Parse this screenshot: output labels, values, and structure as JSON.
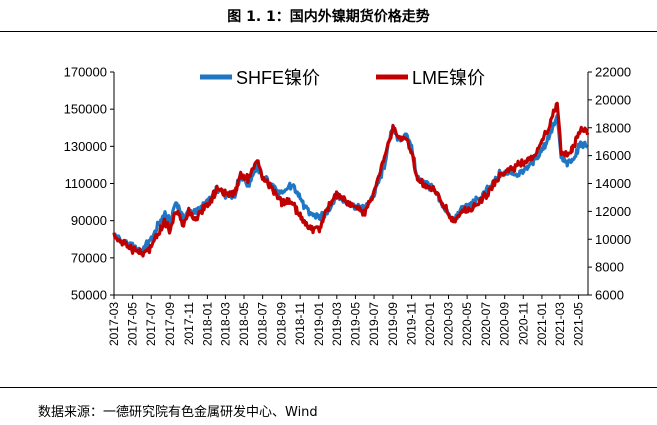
{
  "figure_title": "图 1. 1：国内外镍期货价格走势",
  "source_label": "数据来源：一德研究院有色金属研发中心、Wind",
  "chart_data": {
    "type": "line",
    "title": "",
    "xlabel": "",
    "ylabel": "",
    "y_left": {
      "ticks": [
        "50000",
        "70000",
        "90000",
        "110000",
        "130000",
        "150000",
        "170000"
      ],
      "range": [
        50000,
        170000
      ]
    },
    "y_right": {
      "ticks": [
        "6000",
        "8000",
        "10000",
        "12000",
        "14000",
        "16000",
        "18000",
        "20000",
        "22000"
      ],
      "range": [
        6000,
        22000
      ]
    },
    "x_ticks": [
      "2017-03",
      "2017-05",
      "2017-07",
      "2017-09",
      "2017-11",
      "2018-01",
      "2018-03",
      "2018-05",
      "2018-07",
      "2018-09",
      "2018-11",
      "2019-01",
      "2019-03",
      "2019-05",
      "2019-07",
      "2019-09",
      "2019-11",
      "2020-01",
      "2020-03",
      "2020-05",
      "2020-07",
      "2020-09",
      "2020-11",
      "2021-01",
      "2021-03",
      "2021-05"
    ],
    "legend_position": "top",
    "grid": false,
    "series": [
      {
        "name": "SHFE镍价",
        "axis": "left",
        "color": "#1f77c4",
        "points": [
          [
            "2017-03-01",
            82000
          ],
          [
            "2017-04-01",
            78000
          ],
          [
            "2017-05-01",
            76000
          ],
          [
            "2017-06-01",
            73500
          ],
          [
            "2017-07-01",
            80000
          ],
          [
            "2017-08-01",
            90000
          ],
          [
            "2017-08-15",
            94000
          ],
          [
            "2017-09-01",
            89000
          ],
          [
            "2017-09-20",
            100000
          ],
          [
            "2017-10-15",
            91000
          ],
          [
            "2017-11-01",
            96000
          ],
          [
            "2017-11-20",
            94000
          ],
          [
            "2017-12-15",
            97000
          ],
          [
            "2018-01-15",
            102000
          ],
          [
            "2018-02-01",
            107000
          ],
          [
            "2018-03-01",
            104000
          ],
          [
            "2018-04-01",
            104000
          ],
          [
            "2018-04-20",
            115000
          ],
          [
            "2018-05-15",
            109000
          ],
          [
            "2018-06-10",
            119000
          ],
          [
            "2018-07-01",
            114000
          ],
          [
            "2018-08-01",
            109000
          ],
          [
            "2018-09-01",
            104000
          ],
          [
            "2018-10-01",
            109000
          ],
          [
            "2018-10-20",
            107000
          ],
          [
            "2018-11-15",
            97000
          ],
          [
            "2018-12-01",
            94000
          ],
          [
            "2019-01-05",
            91000
          ],
          [
            "2019-02-01",
            96000
          ],
          [
            "2019-03-01",
            103000
          ],
          [
            "2019-04-01",
            100000
          ],
          [
            "2019-05-01",
            98000
          ],
          [
            "2019-06-01",
            96000
          ],
          [
            "2019-07-01",
            104000
          ],
          [
            "2019-08-01",
            118000
          ],
          [
            "2019-09-01",
            141000
          ],
          [
            "2019-09-20",
            133000
          ],
          [
            "2019-10-15",
            137000
          ],
          [
            "2019-11-01",
            129000
          ],
          [
            "2019-11-20",
            113000
          ],
          [
            "2019-12-15",
            111000
          ],
          [
            "2020-01-15",
            106000
          ],
          [
            "2020-02-10",
            98000
          ],
          [
            "2020-03-20",
            90000
          ],
          [
            "2020-04-15",
            97000
          ],
          [
            "2020-05-15",
            99000
          ],
          [
            "2020-06-15",
            102000
          ],
          [
            "2020-07-15",
            108000
          ],
          [
            "2020-08-15",
            115000
          ],
          [
            "2020-09-15",
            116000
          ],
          [
            "2020-10-15",
            115000
          ],
          [
            "2020-11-15",
            119000
          ],
          [
            "2020-12-15",
            124000
          ],
          [
            "2021-01-15",
            132000
          ],
          [
            "2021-02-20",
            146000
          ],
          [
            "2021-03-05",
            124000
          ],
          [
            "2021-03-25",
            121000
          ],
          [
            "2021-04-10",
            122000
          ],
          [
            "2021-04-25",
            127000
          ],
          [
            "2021-05-10",
            132000
          ],
          [
            "2021-05-31",
            130000
          ]
        ]
      },
      {
        "name": "LME镍价",
        "axis": "right",
        "color": "#c00000",
        "points": [
          [
            "2017-03-01",
            10300
          ],
          [
            "2017-04-01",
            9700
          ],
          [
            "2017-05-01",
            9300
          ],
          [
            "2017-06-01",
            8900
          ],
          [
            "2017-07-01",
            9400
          ],
          [
            "2017-08-01",
            10700
          ],
          [
            "2017-08-15",
            11300
          ],
          [
            "2017-09-01",
            10600
          ],
          [
            "2017-09-20",
            12100
          ],
          [
            "2017-10-15",
            11000
          ],
          [
            "2017-11-01",
            12000
          ],
          [
            "2017-11-20",
            11400
          ],
          [
            "2017-12-15",
            12000
          ],
          [
            "2018-01-15",
            12800
          ],
          [
            "2018-02-01",
            13700
          ],
          [
            "2018-03-01",
            13200
          ],
          [
            "2018-04-01",
            13400
          ],
          [
            "2018-04-20",
            14700
          ],
          [
            "2018-05-15",
            14300
          ],
          [
            "2018-06-10",
            15600
          ],
          [
            "2018-07-01",
            14600
          ],
          [
            "2018-08-01",
            13600
          ],
          [
            "2018-09-01",
            12700
          ],
          [
            "2018-10-01",
            12700
          ],
          [
            "2018-10-20",
            12100
          ],
          [
            "2018-11-15",
            11200
          ],
          [
            "2018-12-01",
            10800
          ],
          [
            "2019-01-05",
            10800
          ],
          [
            "2019-02-01",
            12300
          ],
          [
            "2019-03-01",
            13200
          ],
          [
            "2019-04-01",
            12700
          ],
          [
            "2019-05-01",
            12200
          ],
          [
            "2019-06-01",
            11900
          ],
          [
            "2019-07-01",
            13400
          ],
          [
            "2019-08-01",
            15600
          ],
          [
            "2019-09-01",
            18000
          ],
          [
            "2019-09-20",
            17300
          ],
          [
            "2019-10-15",
            17100
          ],
          [
            "2019-11-01",
            16200
          ],
          [
            "2019-11-20",
            14200
          ],
          [
            "2019-12-15",
            13800
          ],
          [
            "2020-01-15",
            13500
          ],
          [
            "2020-02-10",
            12600
          ],
          [
            "2020-03-20",
            11200
          ],
          [
            "2020-04-15",
            12000
          ],
          [
            "2020-05-15",
            12300
          ],
          [
            "2020-06-15",
            12700
          ],
          [
            "2020-07-15",
            13500
          ],
          [
            "2020-08-15",
            14600
          ],
          [
            "2020-09-15",
            15000
          ],
          [
            "2020-10-15",
            15300
          ],
          [
            "2020-11-15",
            15700
          ],
          [
            "2020-12-15",
            16300
          ],
          [
            "2021-01-15",
            17600
          ],
          [
            "2021-02-20",
            19800
          ],
          [
            "2021-03-05",
            16200
          ],
          [
            "2021-03-25",
            16100
          ],
          [
            "2021-04-10",
            16400
          ],
          [
            "2021-04-25",
            17200
          ],
          [
            "2021-05-10",
            18000
          ],
          [
            "2021-05-31",
            17500
          ]
        ]
      }
    ]
  }
}
